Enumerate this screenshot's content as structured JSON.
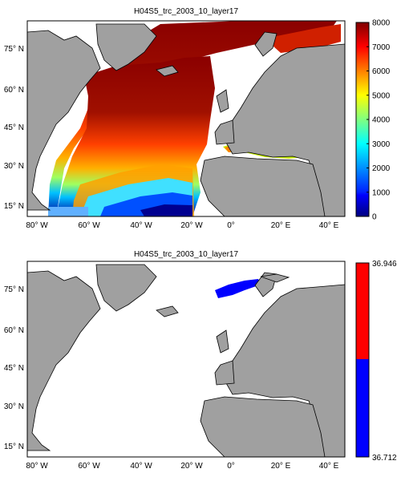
{
  "panels": [
    {
      "title": "H04S5_trc_2003_10_layer17",
      "lat_ticks": [
        "75° N",
        "60° N",
        "45° N",
        "30° N",
        "15° N"
      ],
      "lon_ticks": [
        "80° W",
        "60° W",
        "40° W",
        "20° W",
        "0°",
        "20° E",
        "40° E"
      ],
      "colorbar": {
        "colormap": "jet",
        "range": [
          0,
          8000
        ],
        "tick_labels": [
          "8000",
          "7000",
          "6000",
          "5000",
          "4000",
          "3000",
          "2000",
          "1000",
          "0"
        ]
      }
    },
    {
      "title": "H04S5_trc_2003_10_layer17",
      "lat_ticks": [
        "75° N",
        "60° N",
        "45° N",
        "30° N",
        "15° N"
      ],
      "lon_ticks": [
        "80° W",
        "60° W",
        "40° W",
        "20° W",
        "0°",
        "20° E",
        "40° E"
      ],
      "colorbar": {
        "colormap": "two-class",
        "colors": [
          "#ff0000",
          "#0000ff"
        ],
        "range": [
          36.712,
          36.946
        ],
        "tick_labels": [
          "36.946",
          "36.712"
        ]
      }
    }
  ],
  "colors": {
    "land": "#a0a0a0",
    "coast": "#000000",
    "ocean_empty": "#ffffff"
  }
}
